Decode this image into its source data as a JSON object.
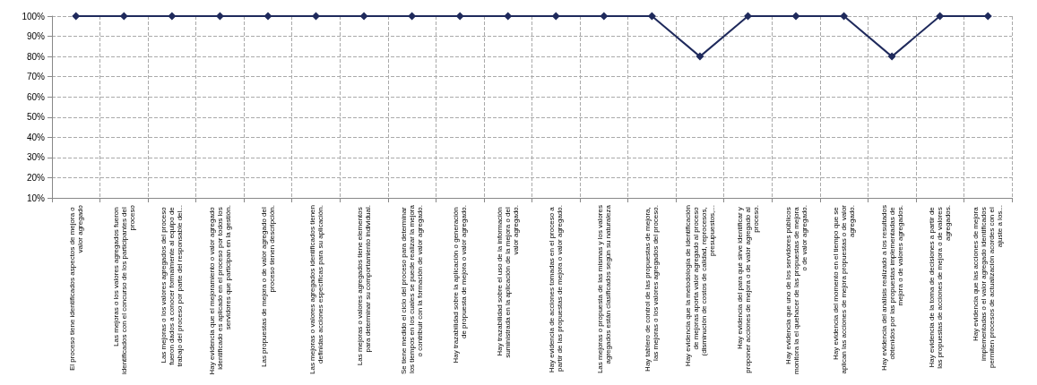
{
  "chart_data": {
    "type": "line",
    "categories": [
      "El proceso tiene identificados aspectos de mejora o valor agregado",
      "Las mejoras o los valores agregados fueron identificados con el concurso de los participantes del proceso",
      "Las mejoras o los valores agregados del proceso fueron dados a conocer formalmente al equipo de trabajo del proceso por parte del responsable del...",
      "Hay evidencia que el mejoramiento o valor agregado identificado es aplicado en el proceso por todos los servidores que participan en la gestión.",
      "Las propuestas de mejora o de valor agregado del proceso tienen descripción.",
      "Las mejoras o valores agregados identificados tienen definidas acciones específicas para su aplicación.",
      "Las mejoras o valores agregados tiene elementos para determinar su comportamiento individual.",
      "Se tiene medido el ciclo del proceso para determinar los tiempos en los cuales se puede realizar la mejora o contribuir con la formación de valor agregado.",
      "Hay trazabilidad sobre la aplicación o generación de propuesta de mejora o valor agregado.",
      "Hay trazabilidad sobre el uso de la información suministrada en la aplicación de la mejora o del valor agregado.",
      "Hay evidencia de acciones tomadas en el proceso a partir de las propuestas de mejora o valor agregado.",
      "Las mejoras o propuesta de las mismas y los valores agregados están clasificados según su naturaleza",
      "Hay tablero de control de las propuestas de mejora, las mejoras o los valores agregados del proceso.",
      "Hay evidencia que la metodología de identificación de mejoras aporta valor agregado al proceso (disminución de costos de calidad, reprocesos, presupuestos,...",
      "Hay evidencia del para qué sirve identificar y proponer acciones de mejora o de valor agregado al proceso.",
      "Hay evidencia que uno de los servidores públicos monitora la el quehacer de las propuestas de mejora o de valor agregado.",
      "Hay evidencia del momento en el tiempo que se aplican las acciones de mejora propuestas o de valor agregado.",
      "Hay evidencia del análisis realizado a los resultados obtenidos por las propuestas implementadas de mejora o de valores agregados.",
      "Hay evidencia de la toma de decisiones a partir de las propuestas de acciones de mejora o de valores agregados.",
      "Hay evidencia que las acciones de mejora implementadas o el valor agregado identificados permiten procesos de actualización acordes con el ajuste a los..."
    ],
    "series": [
      {
        "color": "#1f2a5c",
        "values": [
          100,
          100,
          100,
          100,
          100,
          100,
          100,
          100,
          100,
          100,
          100,
          100,
          100,
          80,
          100,
          100,
          100,
          80,
          100,
          100
        ]
      }
    ],
    "ylim": [
      10,
      100
    ],
    "yticks": [
      {
        "value": 10,
        "label": "10%"
      },
      {
        "value": 20,
        "label": "20%"
      },
      {
        "value": 30,
        "label": "30%"
      },
      {
        "value": 40,
        "label": "40%"
      },
      {
        "value": 50,
        "label": "50%"
      },
      {
        "value": 60,
        "label": "60%"
      },
      {
        "value": 70,
        "label": "70%"
      },
      {
        "value": 80,
        "label": "80%"
      },
      {
        "value": 90,
        "label": "90%"
      },
      {
        "value": 100,
        "label": "100%"
      }
    ],
    "grid": true,
    "marker": "diamond",
    "line_style": "solid"
  }
}
